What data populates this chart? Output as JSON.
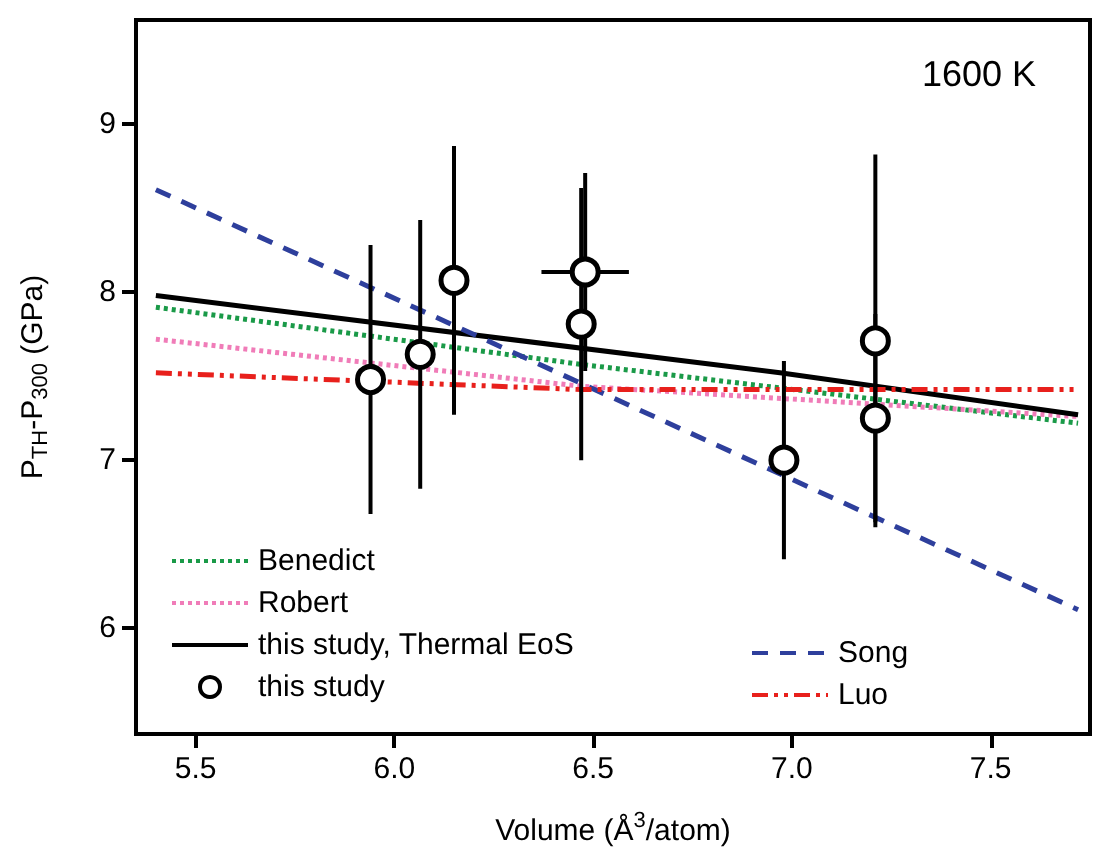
{
  "chart_data": {
    "type": "line",
    "xlabel": "Volume (Å$^{3}$/atom)",
    "ylabel": "P$_{TH}$-P$_{300}$ (GPa)",
    "xlim": [
      5.35,
      7.75
    ],
    "xticks": [
      5.5,
      {
        "value": 6,
        "label": "6.0"
      },
      6.5,
      {
        "value": 7,
        "label": "7.0"
      },
      7.5
    ],
    "ylim": [
      5.37,
      9.62
    ],
    "yticks": [
      6,
      7,
      8,
      9
    ],
    "grid": false,
    "legend": "bottom left",
    "annotations": [
      "1600 K"
    ],
    "series": [
      {
        "name": "Benedict",
        "line_style": "dotted",
        "color": "#1a9a48",
        "x": [
          5.4,
          6.47,
          7.72
        ],
        "values": [
          7.91,
          7.57,
          7.22
        ]
      },
      {
        "name": "Robert",
        "line_style": "dotted",
        "color": "#f07cb8",
        "x": [
          5.4,
          6.47,
          7.72
        ],
        "values": [
          7.72,
          7.44,
          7.26
        ]
      },
      {
        "name": "this study, Thermal EoS",
        "line_style": "solid",
        "color": "#000000",
        "x": [
          5.4,
          6.97,
          7.72
        ],
        "values": [
          7.98,
          7.52,
          7.27
        ]
      },
      {
        "name": "this study",
        "type": "scatter",
        "marker": "circle",
        "color": "#000000",
        "x": [
          5.94,
          6.065,
          6.15,
          6.48,
          6.47,
          6.98,
          7.21,
          7.21
        ],
        "values": [
          7.48,
          7.63,
          8.07,
          8.12,
          7.81,
          7.0,
          7.71,
          7.25
        ],
        "errors": [
          0.8,
          0.8,
          0.8,
          0.59,
          0.81,
          0.59,
          1.11,
          0.62
        ],
        "xerrors": [
          null,
          null,
          null,
          0.11,
          null,
          null,
          null,
          null
        ]
      },
      {
        "name": "Song",
        "line_style": "dashed",
        "color": "#2e3f9c",
        "x": [
          5.4,
          7.72
        ],
        "values": [
          8.61,
          6.11
        ]
      },
      {
        "name": "Luo",
        "line_style": "dashdot",
        "color": "#e8201c",
        "x": [
          5.4,
          6.47,
          7.72
        ],
        "values": [
          7.52,
          7.42,
          7.42
        ]
      }
    ]
  }
}
